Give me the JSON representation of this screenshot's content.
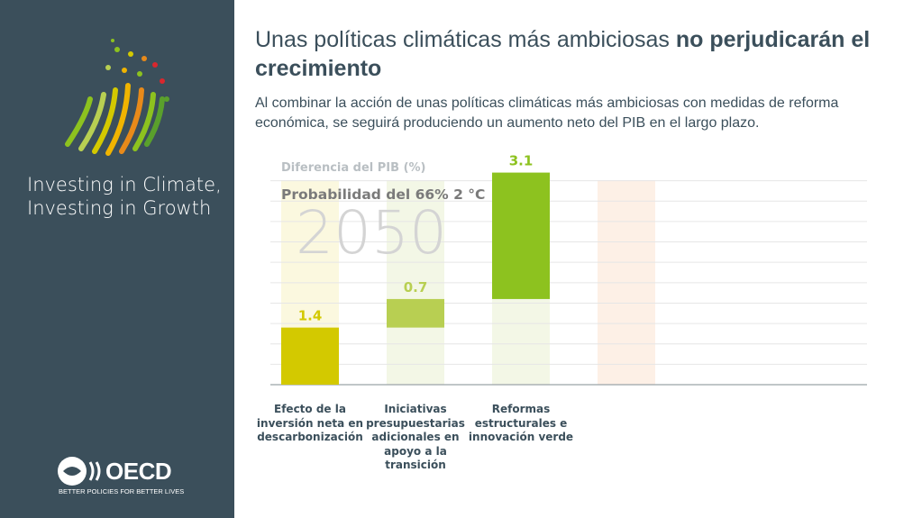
{
  "sidebar": {
    "title": "Investing in Climate, Investing in Growth",
    "logo": "OECD",
    "tagline": "BETTER POLICIES FOR BETTER LIVES"
  },
  "header": {
    "title": "Unas políticas climáticas más ambiciosas",
    "title_bold": "no perjudicarán el crecimiento",
    "subtitle": "Al combinar la acción de unas políticas climáticas más ambiciosas con medidas de reforma económica, se seguirá produciendo un aumento neto del PIB en el largo plazo."
  },
  "chart_data": {
    "type": "waterfall",
    "y_label": "Diferencia del PIB (%)",
    "annotation": "Probabilidad del 66% 2 °C",
    "year": "2050",
    "categories": [
      "Efecto de la inversión neta en descarbonización",
      "Iniciativas presupuestarias adicionales en apoyo a la transición",
      "Reformas estructurales e innovación verde"
    ],
    "values": [
      1.4,
      0.7,
      3.1
    ],
    "colors": [
      "#d3c900",
      "#b8cf52",
      "#8dc21f"
    ],
    "ylim": [
      0,
      5.5
    ],
    "yticks": [
      0,
      0.5,
      1,
      1.5,
      2,
      2.5,
      3,
      3.5,
      4,
      4.5,
      5
    ],
    "grid": true
  }
}
